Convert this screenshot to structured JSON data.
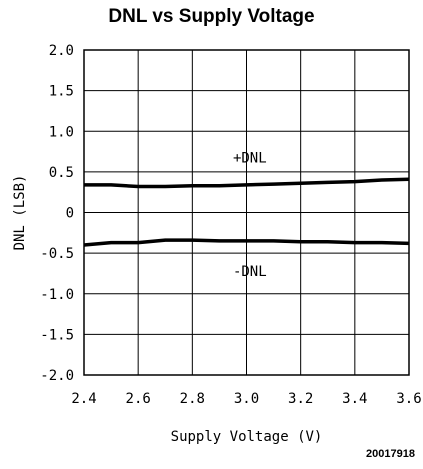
{
  "chart_data": {
    "type": "line",
    "title": "DNL vs Supply Voltage",
    "xlabel": "Supply Voltage (V)",
    "ylabel": "DNL (LSB)",
    "xlim": [
      2.4,
      3.6
    ],
    "ylim": [
      -2.0,
      2.0
    ],
    "grid": true,
    "x_ticks": [
      "2.4",
      "2.6",
      "2.8",
      "3.0",
      "3.2",
      "3.4",
      "3.6"
    ],
    "y_ticks": [
      "2.0",
      "1.5",
      "1.0",
      "0.5",
      "0",
      "-0.5",
      "-1.0",
      "-1.5",
      "-2.0"
    ],
    "x": [
      2.4,
      2.5,
      2.6,
      2.7,
      2.8,
      2.9,
      3.0,
      3.1,
      3.2,
      3.3,
      3.4,
      3.5,
      3.6
    ],
    "series": [
      {
        "name": "+DNL",
        "values": [
          0.34,
          0.34,
          0.32,
          0.32,
          0.33,
          0.33,
          0.34,
          0.35,
          0.36,
          0.37,
          0.38,
          0.4,
          0.41
        ]
      },
      {
        "name": "-DNL",
        "values": [
          -0.4,
          -0.37,
          -0.37,
          -0.34,
          -0.34,
          -0.35,
          -0.35,
          -0.35,
          -0.36,
          -0.36,
          -0.37,
          -0.37,
          -0.38
        ]
      }
    ],
    "annotations": [
      {
        "text": "+DNL",
        "x": 2.95,
        "y": 0.68
      },
      {
        "text": "-DNL",
        "x": 2.95,
        "y": -0.72
      }
    ],
    "line_color": "#000000",
    "grid_color": "#000000"
  },
  "figure_id": "20017918"
}
